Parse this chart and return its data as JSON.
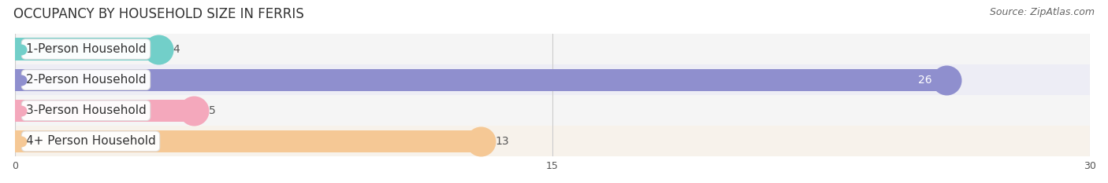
{
  "title": "OCCUPANCY BY HOUSEHOLD SIZE IN FERRIS",
  "source": "Source: ZipAtlas.com",
  "categories": [
    "1-Person Household",
    "2-Person Household",
    "3-Person Household",
    "4+ Person Household"
  ],
  "values": [
    4,
    26,
    5,
    13
  ],
  "bar_colors": [
    "#72cfc9",
    "#8f8fce",
    "#f4a8bc",
    "#f5c895"
  ],
  "row_bg_colors": [
    "#f5f5f5",
    "#ededf5",
    "#f5f5f5",
    "#f7f2eb"
  ],
  "xlim": [
    0,
    30
  ],
  "xticks": [
    0,
    15,
    30
  ],
  "value_label_color_inside": "#ffffff",
  "value_label_color_outside": "#555555",
  "title_fontsize": 12,
  "source_fontsize": 9,
  "bar_label_fontsize": 11,
  "value_fontsize": 10,
  "background_color": "#ffffff"
}
